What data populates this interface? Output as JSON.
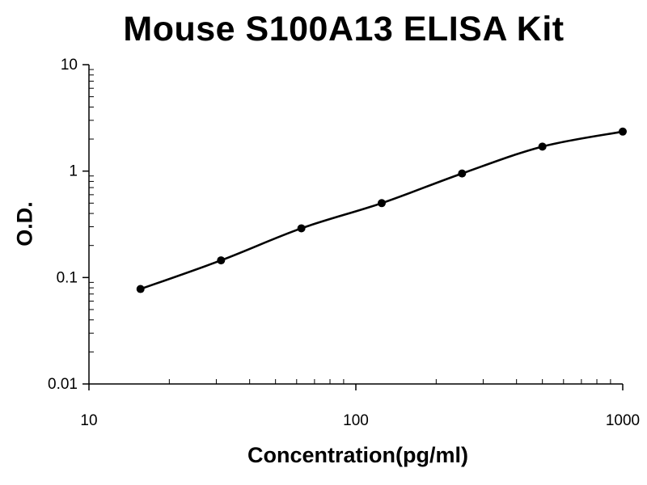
{
  "chart_data": {
    "type": "line",
    "title": "Mouse S100A13 ELISA Kit",
    "xlabel": "Concentration(pg/ml)",
    "ylabel": "O.D.",
    "x_scale": "log",
    "y_scale": "log",
    "xlim": [
      10,
      1000
    ],
    "ylim": [
      0.01,
      10
    ],
    "x_ticks": [
      "10",
      "100",
      "1000"
    ],
    "y_ticks": [
      "0.01",
      "0.1",
      "1",
      "10"
    ],
    "grid": false,
    "series": [
      {
        "x": [
          15.6,
          31.25,
          62.5,
          125,
          250,
          500,
          1000
        ],
        "y": [
          0.078,
          0.145,
          0.29,
          0.5,
          0.95,
          1.7,
          2.35
        ]
      }
    ],
    "colors": {
      "line": "#000000",
      "points": "#000000",
      "axes": "#000000"
    }
  }
}
